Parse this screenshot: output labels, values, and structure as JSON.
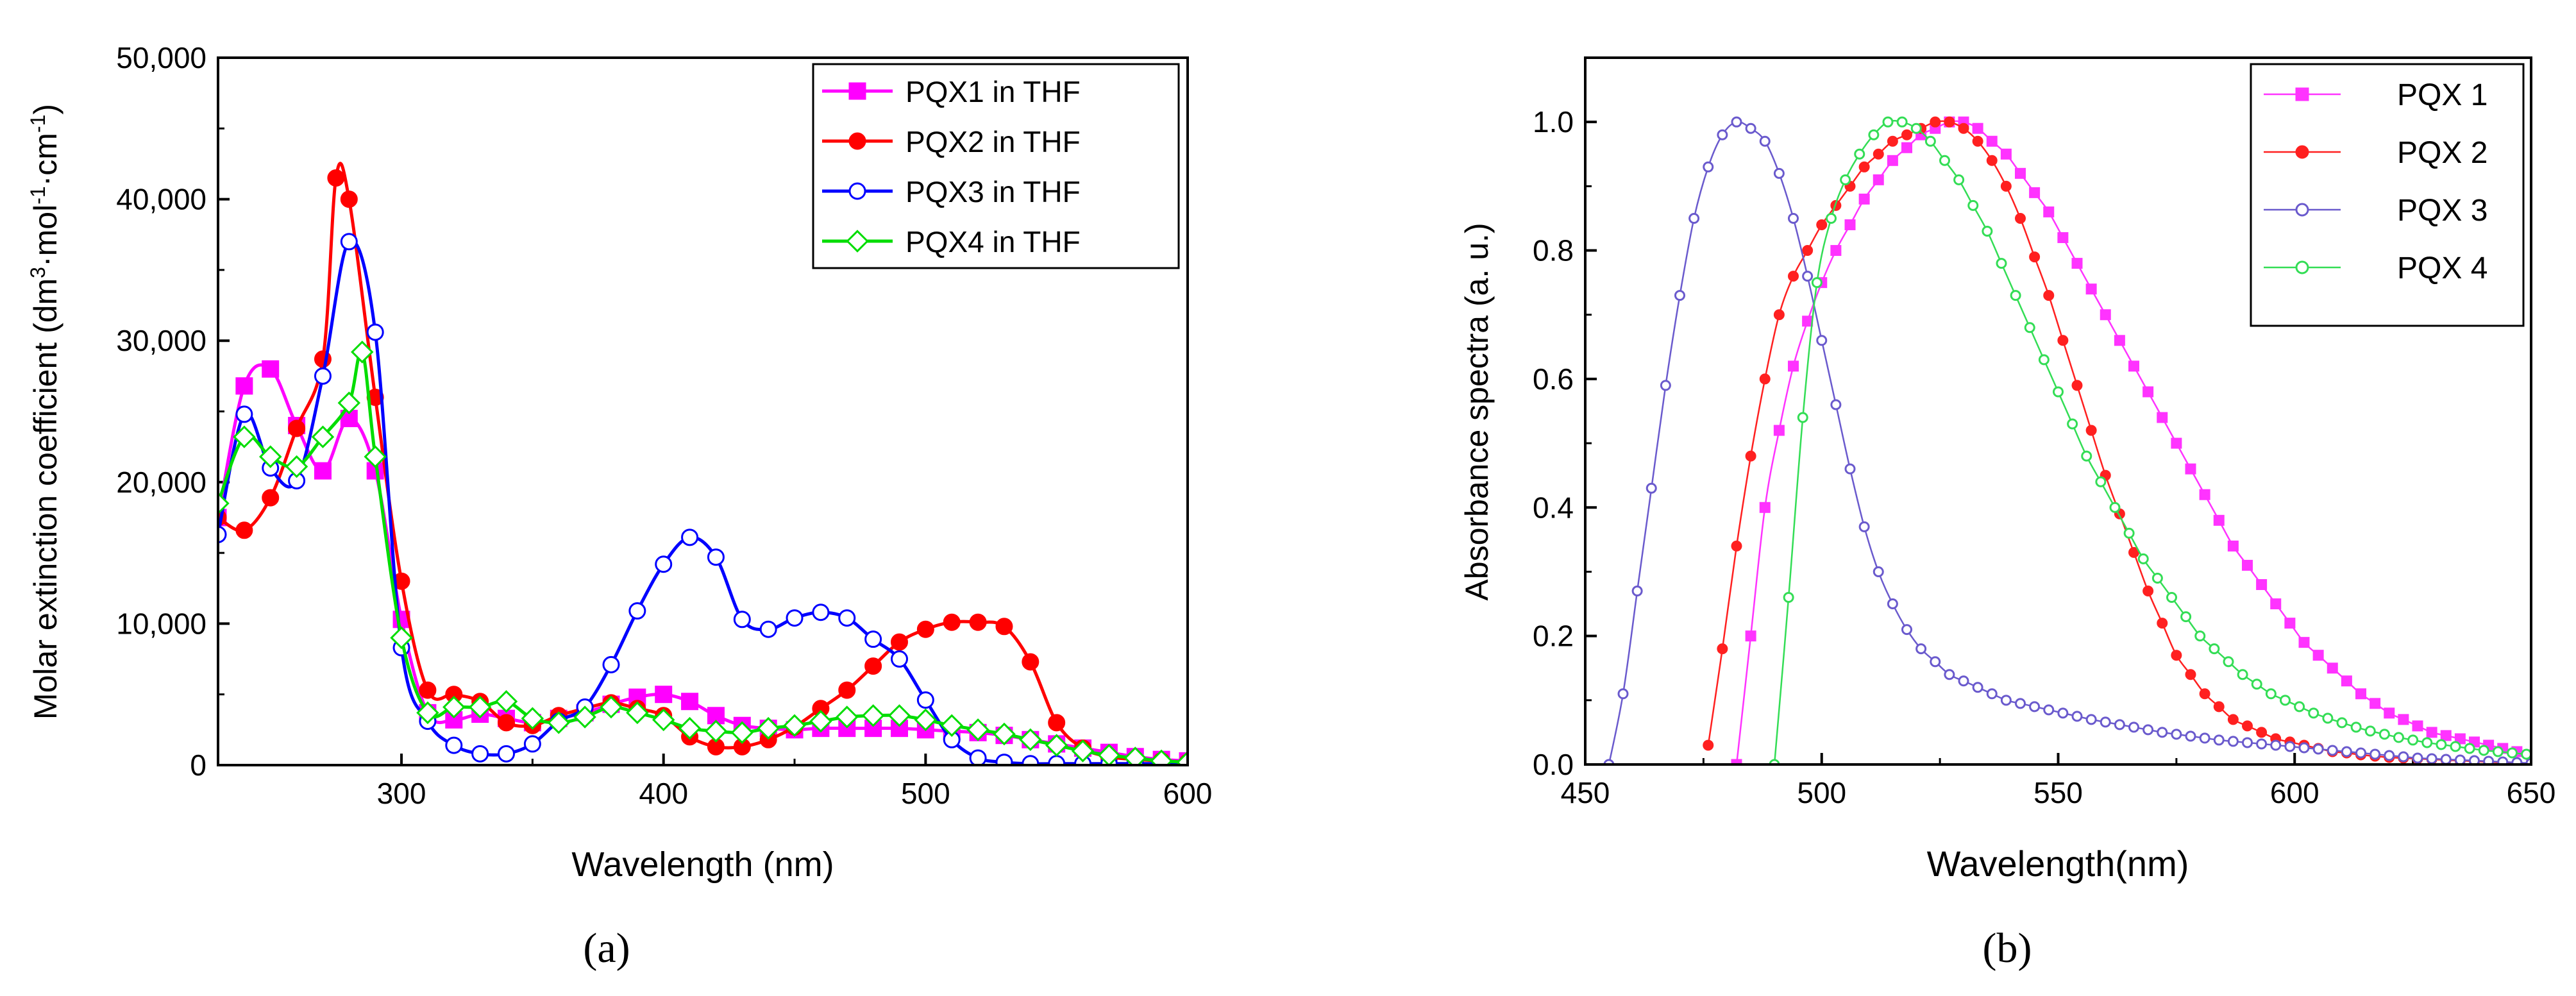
{
  "chart_data": [
    {
      "type": "line",
      "panel_label": "(a)",
      "xlabel": "Wavelength (nm)",
      "ylabel_main": "Molar extinction coefficient (dm",
      "ylabel_sup1": "3",
      "ylabel_mid1": "·mol",
      "ylabel_sup2": "-1",
      "ylabel_mid2": "·cm",
      "ylabel_sup3": "-1",
      "ylabel_end": ")",
      "xlim": [
        230,
        600
      ],
      "ylim": [
        0,
        50000
      ],
      "xticks": [
        300,
        400,
        500,
        600
      ],
      "xtick_labels": [
        "300",
        "400",
        "500",
        "600"
      ],
      "yticks": [
        0,
        10000,
        20000,
        30000,
        40000,
        50000
      ],
      "ytick_labels": [
        "0",
        "10,000",
        "20,000",
        "30,000",
        "40,000",
        "50,000"
      ],
      "legend": "top-right",
      "series": [
        {
          "name": "PQX1 in THF",
          "color": "#ff00ff",
          "marker": "square",
          "marker_fill": "filled",
          "x": [
            230,
            240,
            250,
            260,
            270,
            280,
            290,
            300,
            310,
            320,
            330,
            340,
            350,
            360,
            370,
            380,
            390,
            400,
            410,
            420,
            430,
            440,
            450,
            460,
            470,
            480,
            490,
            500,
            510,
            520,
            530,
            540,
            550,
            560,
            570,
            580,
            590,
            600
          ],
          "y": [
            17500,
            26800,
            28000,
            24000,
            20800,
            24500,
            20800,
            10300,
            3700,
            3200,
            3600,
            3300,
            3000,
            3300,
            3700,
            4300,
            4800,
            5000,
            4500,
            3500,
            2800,
            2600,
            2500,
            2600,
            2600,
            2600,
            2600,
            2500,
            2400,
            2300,
            2100,
            1800,
            1500,
            1200,
            900,
            600,
            400,
            300
          ]
        },
        {
          "name": "PQX2 in THF",
          "color": "#ff0000",
          "marker": "circle",
          "marker_fill": "filled",
          "x": [
            230,
            240,
            250,
            260,
            270,
            275,
            280,
            290,
            300,
            310,
            320,
            330,
            340,
            350,
            360,
            370,
            380,
            390,
            400,
            410,
            420,
            430,
            440,
            450,
            460,
            470,
            480,
            490,
            500,
            510,
            520,
            530,
            540,
            550,
            560,
            570,
            580,
            590,
            600
          ],
          "y": [
            17500,
            16600,
            18900,
            23800,
            28700,
            41500,
            40000,
            26000,
            13000,
            5300,
            5000,
            4500,
            3000,
            2800,
            3500,
            4000,
            4400,
            4000,
            3500,
            2000,
            1300,
            1300,
            1800,
            2700,
            4000,
            5300,
            7000,
            8700,
            9600,
            10100,
            10100,
            9800,
            7300,
            3000,
            1200,
            600,
            400,
            300,
            200
          ]
        },
        {
          "name": "PQX3 in THF",
          "color": "#0000ff",
          "marker": "circle",
          "marker_fill": "open",
          "x": [
            230,
            240,
            250,
            260,
            270,
            280,
            290,
            300,
            310,
            320,
            330,
            340,
            350,
            360,
            370,
            380,
            390,
            400,
            410,
            420,
            430,
            440,
            450,
            460,
            470,
            480,
            490,
            500,
            510,
            520,
            530,
            540,
            550,
            560,
            570,
            580,
            590,
            600
          ],
          "y": [
            16300,
            24800,
            21000,
            20100,
            27500,
            37000,
            30600,
            8300,
            3100,
            1400,
            800,
            800,
            1500,
            3100,
            4100,
            7100,
            10900,
            14200,
            16100,
            14700,
            10300,
            9600,
            10400,
            10800,
            10400,
            8900,
            7500,
            4600,
            1800,
            500,
            200,
            100,
            100,
            100,
            100,
            100,
            100,
            100
          ]
        },
        {
          "name": "PQX4 in THF",
          "color": "#00dd00",
          "marker": "diamond",
          "marker_fill": "open",
          "x": [
            230,
            240,
            250,
            260,
            270,
            280,
            285,
            290,
            300,
            310,
            320,
            330,
            340,
            350,
            360,
            370,
            380,
            390,
            400,
            410,
            420,
            430,
            440,
            450,
            460,
            470,
            480,
            490,
            500,
            510,
            520,
            530,
            540,
            550,
            560,
            570,
            580,
            590,
            600
          ],
          "y": [
            18500,
            23200,
            21800,
            21100,
            23200,
            25600,
            29200,
            21800,
            9000,
            3700,
            4100,
            4100,
            4500,
            3300,
            3000,
            3400,
            4100,
            3700,
            3200,
            2600,
            2400,
            2300,
            2600,
            2800,
            3100,
            3400,
            3500,
            3500,
            3200,
            2800,
            2500,
            2200,
            1800,
            1400,
            1000,
            700,
            500,
            300,
            200
          ]
        }
      ]
    },
    {
      "type": "line",
      "panel_label": "(b)",
      "xlabel": "Wavelength(nm)",
      "ylabel": "Absorbance spectra (a. u.)",
      "xlim": [
        450,
        650
      ],
      "ylim": [
        0,
        1.1
      ],
      "xticks": [
        450,
        500,
        550,
        600,
        650
      ],
      "xtick_labels": [
        "450",
        "500",
        "550",
        "600",
        "650"
      ],
      "yticks": [
        0,
        0.2,
        0.4,
        0.6,
        0.8,
        1.0
      ],
      "ytick_labels": [
        "0.0",
        "0.2",
        "0.4",
        "0.6",
        "0.8",
        "1.0"
      ],
      "legend": "top-right",
      "series": [
        {
          "name": "PQX 1",
          "color": "#ff33ff",
          "marker": "square",
          "marker_fill": "filled",
          "x": [
            482,
            485,
            488,
            491,
            494,
            497,
            500,
            503,
            506,
            509,
            512,
            515,
            518,
            521,
            524,
            527,
            530,
            533,
            536,
            539,
            542,
            545,
            548,
            551,
            554,
            557,
            560,
            563,
            566,
            569,
            572,
            575,
            578,
            581,
            584,
            587,
            590,
            593,
            596,
            599,
            602,
            605,
            608,
            611,
            614,
            617,
            620,
            623,
            626,
            629,
            632,
            635,
            638,
            641,
            644,
            647,
            650
          ],
          "y": [
            0.0,
            0.2,
            0.4,
            0.52,
            0.62,
            0.69,
            0.75,
            0.8,
            0.84,
            0.88,
            0.91,
            0.94,
            0.96,
            0.98,
            0.99,
            1.0,
            1.0,
            0.99,
            0.97,
            0.95,
            0.92,
            0.89,
            0.86,
            0.82,
            0.78,
            0.74,
            0.7,
            0.66,
            0.62,
            0.58,
            0.54,
            0.5,
            0.46,
            0.42,
            0.38,
            0.34,
            0.31,
            0.28,
            0.25,
            0.22,
            0.19,
            0.17,
            0.15,
            0.13,
            0.11,
            0.095,
            0.08,
            0.07,
            0.06,
            0.05,
            0.045,
            0.04,
            0.035,
            0.03,
            0.025,
            0.02,
            0.015
          ]
        },
        {
          "name": "PQX 2",
          "color": "#ff2020",
          "marker": "circle",
          "marker_fill": "filled",
          "x": [
            476,
            479,
            482,
            485,
            488,
            491,
            494,
            497,
            500,
            503,
            506,
            509,
            512,
            515,
            518,
            521,
            524,
            527,
            530,
            533,
            536,
            539,
            542,
            545,
            548,
            551,
            554,
            557,
            560,
            563,
            566,
            569,
            572,
            575,
            578,
            581,
            584,
            587,
            590,
            593,
            596,
            599,
            602,
            605,
            608,
            611,
            614,
            617,
            620,
            623,
            626,
            629,
            632,
            635,
            638,
            641,
            644,
            647,
            650
          ],
          "y": [
            0.03,
            0.18,
            0.34,
            0.48,
            0.6,
            0.7,
            0.76,
            0.8,
            0.84,
            0.87,
            0.9,
            0.93,
            0.95,
            0.97,
            0.98,
            0.99,
            1.0,
            1.0,
            0.99,
            0.97,
            0.94,
            0.9,
            0.85,
            0.79,
            0.73,
            0.66,
            0.59,
            0.52,
            0.45,
            0.39,
            0.33,
            0.27,
            0.22,
            0.17,
            0.14,
            0.11,
            0.09,
            0.07,
            0.06,
            0.05,
            0.04,
            0.035,
            0.03,
            0.025,
            0.02,
            0.018,
            0.015,
            0.013,
            0.011,
            0.01,
            0.009,
            0.008,
            0.007,
            0.006,
            0.005,
            0.004,
            0.003,
            0.002,
            0.001
          ]
        },
        {
          "name": "PQX 3",
          "color": "#6a5acd",
          "marker": "circle",
          "marker_fill": "open",
          "x": [
            455,
            458,
            461,
            464,
            467,
            470,
            473,
            476,
            479,
            482,
            485,
            488,
            491,
            494,
            497,
            500,
            503,
            506,
            509,
            512,
            515,
            518,
            521,
            524,
            527,
            530,
            533,
            536,
            539,
            542,
            545,
            548,
            551,
            554,
            557,
            560,
            563,
            566,
            569,
            572,
            575,
            578,
            581,
            584,
            587,
            590,
            593,
            596,
            599,
            602,
            605,
            608,
            611,
            614,
            617,
            620,
            623,
            626,
            629,
            632,
            635,
            638,
            641,
            644,
            647,
            650
          ],
          "y": [
            0.0,
            0.11,
            0.27,
            0.43,
            0.59,
            0.73,
            0.85,
            0.93,
            0.98,
            1.0,
            0.99,
            0.97,
            0.92,
            0.85,
            0.76,
            0.66,
            0.56,
            0.46,
            0.37,
            0.3,
            0.25,
            0.21,
            0.18,
            0.16,
            0.14,
            0.13,
            0.12,
            0.11,
            0.1,
            0.095,
            0.09,
            0.085,
            0.08,
            0.075,
            0.07,
            0.066,
            0.062,
            0.058,
            0.054,
            0.05,
            0.047,
            0.044,
            0.041,
            0.038,
            0.036,
            0.034,
            0.032,
            0.03,
            0.028,
            0.026,
            0.024,
            0.022,
            0.02,
            0.018,
            0.016,
            0.014,
            0.012,
            0.01,
            0.009,
            0.008,
            0.007,
            0.006,
            0.005,
            0.004,
            0.003,
            0.002
          ]
        },
        {
          "name": "PQX 4",
          "color": "#33dd55",
          "marker": "circle",
          "marker_fill": "open",
          "x": [
            490,
            493,
            496,
            499,
            502,
            505,
            508,
            511,
            514,
            517,
            520,
            523,
            526,
            529,
            532,
            535,
            538,
            541,
            544,
            547,
            550,
            553,
            556,
            559,
            562,
            565,
            568,
            571,
            574,
            577,
            580,
            583,
            586,
            589,
            592,
            595,
            598,
            601,
            604,
            607,
            610,
            613,
            616,
            619,
            622,
            625,
            628,
            631,
            634,
            637,
            640,
            643,
            646,
            649
          ],
          "y": [
            0.0,
            0.26,
            0.54,
            0.75,
            0.85,
            0.91,
            0.95,
            0.98,
            1.0,
            1.0,
            0.99,
            0.97,
            0.94,
            0.91,
            0.87,
            0.83,
            0.78,
            0.73,
            0.68,
            0.63,
            0.58,
            0.53,
            0.48,
            0.44,
            0.4,
            0.36,
            0.32,
            0.29,
            0.26,
            0.23,
            0.2,
            0.18,
            0.16,
            0.14,
            0.125,
            0.11,
            0.1,
            0.09,
            0.08,
            0.072,
            0.065,
            0.058,
            0.052,
            0.047,
            0.042,
            0.038,
            0.034,
            0.031,
            0.028,
            0.025,
            0.022,
            0.02,
            0.018,
            0.016
          ]
        }
      ]
    }
  ]
}
